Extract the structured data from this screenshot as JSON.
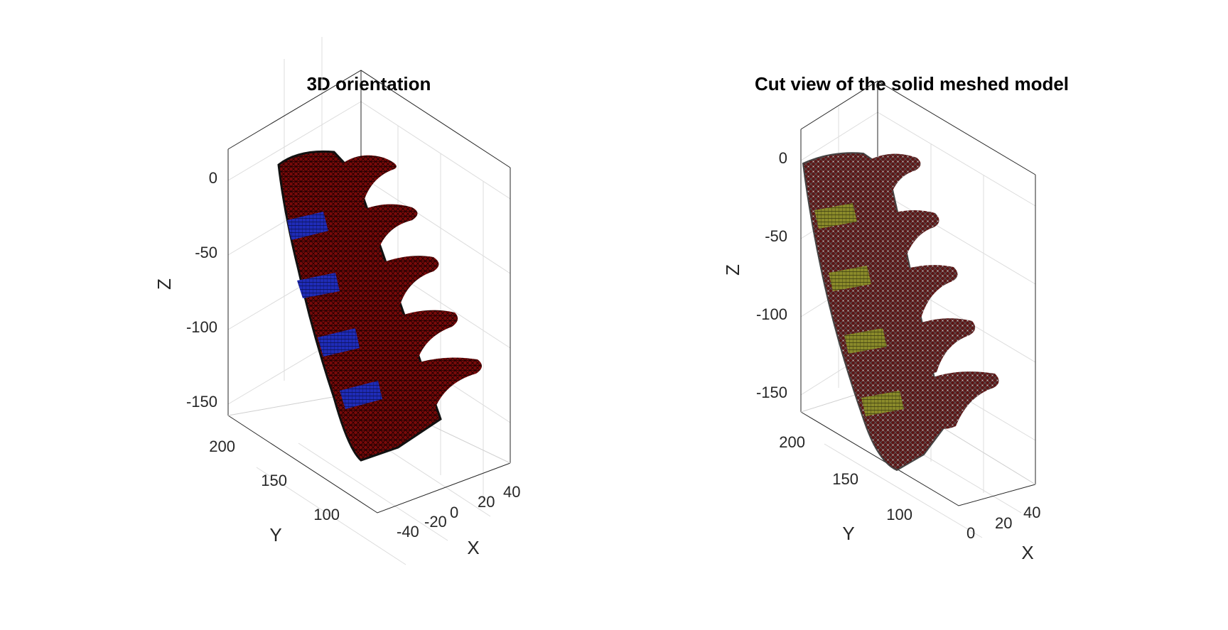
{
  "chart_data": [
    {
      "type": "mesh3d",
      "title": "3D orientation",
      "xlabel": "X",
      "ylabel": "Y",
      "zlabel": "Z",
      "x_ticks": [
        -40,
        -20,
        0,
        20,
        40
      ],
      "y_ticks": [
        100,
        150,
        200
      ],
      "z_ticks": [
        0,
        -50,
        -100,
        -150
      ],
      "vertebra_count": 5,
      "disc_count": 4,
      "grid": true,
      "colors": {
        "bone": "#7a0a0a",
        "mesh": "#1a0000",
        "disc": "#1f2cb8",
        "body_edge": "#111111"
      }
    },
    {
      "type": "mesh3d",
      "title": "Cut view of the solid meshed model",
      "xlabel": "X",
      "ylabel": "Y",
      "zlabel": "Z",
      "x_ticks": [
        0,
        20,
        40
      ],
      "y_ticks": [
        100,
        150,
        200
      ],
      "z_ticks": [
        0,
        -50,
        -100,
        -150
      ],
      "vertebra_count": 5,
      "disc_count": 4,
      "grid": true,
      "colors": {
        "bone": "#6a1010",
        "mesh": "#3a3a3a",
        "disc": "#8a8a2a",
        "body_edge": "#444444"
      }
    }
  ]
}
